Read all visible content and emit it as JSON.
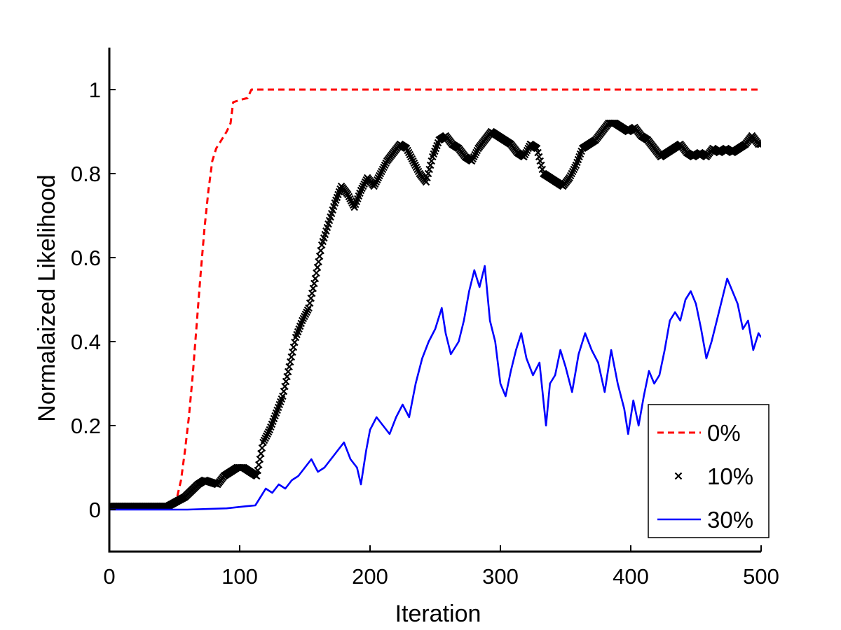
{
  "chart_data": {
    "type": "line",
    "title": "",
    "xlabel": "Iteration",
    "ylabel": "Normalaized Likelihood",
    "xlim": [
      0,
      500
    ],
    "ylim": [
      -0.1,
      1.1
    ],
    "xticks": [
      0,
      100,
      200,
      300,
      400,
      500
    ],
    "xtick_labels": [
      "0",
      "100",
      "200",
      "300",
      "400",
      "500"
    ],
    "yticks": [
      0,
      0.2,
      0.4,
      0.6,
      0.8,
      1
    ],
    "ytick_labels": [
      "0",
      "0.2",
      "0.4",
      "0.6",
      "0.8",
      "1"
    ],
    "grid": false,
    "legend": {
      "position": "bottom-right"
    },
    "series": [
      {
        "name": "0%",
        "style": "dashed",
        "color": "#ff0000",
        "points": [
          [
            0,
            0.005
          ],
          [
            40,
            0.005
          ],
          [
            48,
            0.01
          ],
          [
            52,
            0.03
          ],
          [
            55,
            0.07
          ],
          [
            58,
            0.14
          ],
          [
            61,
            0.22
          ],
          [
            64,
            0.32
          ],
          [
            67,
            0.44
          ],
          [
            70,
            0.56
          ],
          [
            73,
            0.67
          ],
          [
            76,
            0.76
          ],
          [
            79,
            0.83
          ],
          [
            82,
            0.86
          ],
          [
            86,
            0.88
          ],
          [
            90,
            0.9
          ],
          [
            93,
            0.92
          ],
          [
            95,
            0.97
          ],
          [
            100,
            0.975
          ],
          [
            106,
            0.98
          ],
          [
            109,
            1.0
          ],
          [
            200,
            1.0
          ],
          [
            300,
            1.0
          ],
          [
            400,
            1.0
          ],
          [
            500,
            1.0
          ]
        ]
      },
      {
        "name": "10%",
        "style": "markers-x",
        "color": "#000000",
        "points": [
          [
            0,
            0.008
          ],
          [
            45,
            0.008
          ],
          [
            52,
            0.02
          ],
          [
            58,
            0.03
          ],
          [
            63,
            0.045
          ],
          [
            68,
            0.06
          ],
          [
            73,
            0.07
          ],
          [
            78,
            0.065
          ],
          [
            83,
            0.06
          ],
          [
            88,
            0.08
          ],
          [
            93,
            0.09
          ],
          [
            98,
            0.1
          ],
          [
            103,
            0.1
          ],
          [
            108,
            0.09
          ],
          [
            113,
            0.08
          ],
          [
            118,
            0.16
          ],
          [
            123,
            0.19
          ],
          [
            128,
            0.23
          ],
          [
            133,
            0.27
          ],
          [
            138,
            0.34
          ],
          [
            143,
            0.41
          ],
          [
            148,
            0.45
          ],
          [
            153,
            0.48
          ],
          [
            158,
            0.55
          ],
          [
            163,
            0.63
          ],
          [
            168,
            0.68
          ],
          [
            173,
            0.73
          ],
          [
            178,
            0.77
          ],
          [
            183,
            0.75
          ],
          [
            188,
            0.72
          ],
          [
            193,
            0.76
          ],
          [
            198,
            0.79
          ],
          [
            203,
            0.77
          ],
          [
            208,
            0.8
          ],
          [
            213,
            0.83
          ],
          [
            218,
            0.85
          ],
          [
            223,
            0.87
          ],
          [
            228,
            0.86
          ],
          [
            233,
            0.83
          ],
          [
            238,
            0.8
          ],
          [
            243,
            0.78
          ],
          [
            248,
            0.84
          ],
          [
            253,
            0.88
          ],
          [
            258,
            0.89
          ],
          [
            263,
            0.87
          ],
          [
            268,
            0.86
          ],
          [
            273,
            0.84
          ],
          [
            278,
            0.83
          ],
          [
            283,
            0.86
          ],
          [
            288,
            0.88
          ],
          [
            293,
            0.9
          ],
          [
            298,
            0.89
          ],
          [
            303,
            0.88
          ],
          [
            308,
            0.87
          ],
          [
            313,
            0.85
          ],
          [
            318,
            0.84
          ],
          [
            323,
            0.87
          ],
          [
            328,
            0.86
          ],
          [
            333,
            0.8
          ],
          [
            338,
            0.79
          ],
          [
            343,
            0.78
          ],
          [
            348,
            0.77
          ],
          [
            353,
            0.79
          ],
          [
            358,
            0.82
          ],
          [
            363,
            0.86
          ],
          [
            368,
            0.87
          ],
          [
            373,
            0.88
          ],
          [
            378,
            0.9
          ],
          [
            383,
            0.92
          ],
          [
            388,
            0.92
          ],
          [
            393,
            0.91
          ],
          [
            398,
            0.9
          ],
          [
            403,
            0.91
          ],
          [
            408,
            0.89
          ],
          [
            413,
            0.88
          ],
          [
            418,
            0.86
          ],
          [
            423,
            0.84
          ],
          [
            428,
            0.85
          ],
          [
            433,
            0.86
          ],
          [
            438,
            0.87
          ],
          [
            443,
            0.85
          ],
          [
            448,
            0.84
          ],
          [
            453,
            0.85
          ],
          [
            458,
            0.84
          ],
          [
            463,
            0.86
          ],
          [
            468,
            0.85
          ],
          [
            473,
            0.86
          ],
          [
            478,
            0.85
          ],
          [
            483,
            0.86
          ],
          [
            488,
            0.87
          ],
          [
            493,
            0.89
          ],
          [
            498,
            0.87
          ],
          [
            500,
            0.87
          ]
        ]
      },
      {
        "name": "30%",
        "style": "solid",
        "color": "#0000ff",
        "points": [
          [
            0,
            0.0
          ],
          [
            60,
            0.0
          ],
          [
            90,
            0.003
          ],
          [
            105,
            0.008
          ],
          [
            112,
            0.01
          ],
          [
            116,
            0.03
          ],
          [
            120,
            0.05
          ],
          [
            125,
            0.04
          ],
          [
            130,
            0.06
          ],
          [
            135,
            0.05
          ],
          [
            140,
            0.07
          ],
          [
            145,
            0.08
          ],
          [
            150,
            0.1
          ],
          [
            155,
            0.12
          ],
          [
            160,
            0.09
          ],
          [
            165,
            0.1
          ],
          [
            170,
            0.12
          ],
          [
            175,
            0.14
          ],
          [
            180,
            0.16
          ],
          [
            185,
            0.12
          ],
          [
            190,
            0.1
          ],
          [
            193,
            0.06
          ],
          [
            197,
            0.14
          ],
          [
            200,
            0.19
          ],
          [
            205,
            0.22
          ],
          [
            210,
            0.2
          ],
          [
            215,
            0.18
          ],
          [
            220,
            0.22
          ],
          [
            225,
            0.25
          ],
          [
            230,
            0.22
          ],
          [
            235,
            0.3
          ],
          [
            240,
            0.36
          ],
          [
            245,
            0.4
          ],
          [
            250,
            0.43
          ],
          [
            255,
            0.48
          ],
          [
            258,
            0.42
          ],
          [
            262,
            0.37
          ],
          [
            268,
            0.4
          ],
          [
            272,
            0.45
          ],
          [
            276,
            0.52
          ],
          [
            280,
            0.57
          ],
          [
            284,
            0.53
          ],
          [
            288,
            0.58
          ],
          [
            292,
            0.45
          ],
          [
            296,
            0.4
          ],
          [
            300,
            0.3
          ],
          [
            304,
            0.27
          ],
          [
            308,
            0.33
          ],
          [
            312,
            0.38
          ],
          [
            316,
            0.42
          ],
          [
            320,
            0.36
          ],
          [
            325,
            0.32
          ],
          [
            330,
            0.35
          ],
          [
            335,
            0.2
          ],
          [
            338,
            0.3
          ],
          [
            342,
            0.32
          ],
          [
            346,
            0.38
          ],
          [
            350,
            0.34
          ],
          [
            355,
            0.28
          ],
          [
            360,
            0.37
          ],
          [
            365,
            0.42
          ],
          [
            370,
            0.38
          ],
          [
            375,
            0.35
          ],
          [
            380,
            0.28
          ],
          [
            385,
            0.38
          ],
          [
            390,
            0.3
          ],
          [
            395,
            0.24
          ],
          [
            398,
            0.18
          ],
          [
            402,
            0.26
          ],
          [
            406,
            0.2
          ],
          [
            410,
            0.27
          ],
          [
            414,
            0.33
          ],
          [
            418,
            0.3
          ],
          [
            422,
            0.32
          ],
          [
            426,
            0.38
          ],
          [
            430,
            0.45
          ],
          [
            434,
            0.47
          ],
          [
            438,
            0.45
          ],
          [
            442,
            0.5
          ],
          [
            446,
            0.52
          ],
          [
            450,
            0.49
          ],
          [
            454,
            0.43
          ],
          [
            458,
            0.36
          ],
          [
            462,
            0.4
          ],
          [
            466,
            0.45
          ],
          [
            470,
            0.5
          ],
          [
            474,
            0.55
          ],
          [
            478,
            0.52
          ],
          [
            482,
            0.49
          ],
          [
            486,
            0.43
          ],
          [
            490,
            0.45
          ],
          [
            494,
            0.38
          ],
          [
            498,
            0.42
          ],
          [
            500,
            0.41
          ]
        ]
      }
    ]
  }
}
